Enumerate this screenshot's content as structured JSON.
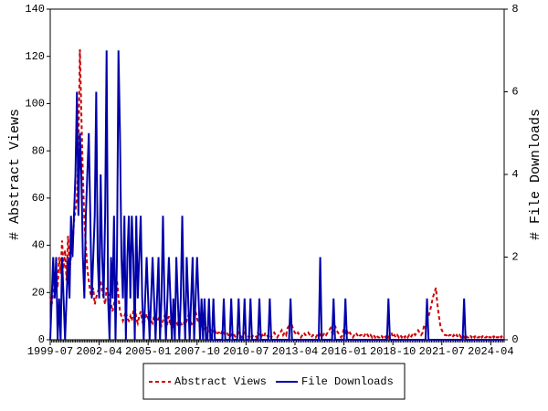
{
  "chart_data": {
    "type": "line",
    "ylabel": "# Abstract Views",
    "y2label": "# File Downloads",
    "x": [
      "1999-07",
      "1999-08",
      "1999-09",
      "1999-10",
      "1999-11",
      "1999-12",
      "2000-01",
      "2000-02",
      "2000-03",
      "2000-04",
      "2000-05",
      "2000-06",
      "2000-07",
      "2000-08",
      "2000-09",
      "2000-10",
      "2000-11",
      "2000-12",
      "2001-01",
      "2001-02",
      "2001-03",
      "2001-04",
      "2001-05",
      "2001-06",
      "2001-07",
      "2001-08",
      "2001-09",
      "2001-10",
      "2001-11",
      "2001-12",
      "2002-01",
      "2002-02",
      "2002-03",
      "2002-04",
      "2002-05",
      "2002-06",
      "2002-07",
      "2002-08",
      "2002-09",
      "2002-10",
      "2002-11",
      "2002-12",
      "2003-01",
      "2003-02",
      "2003-03",
      "2003-04",
      "2003-05",
      "2003-06",
      "2003-07",
      "2003-08",
      "2003-09",
      "2003-10",
      "2003-11",
      "2003-12",
      "2004-01",
      "2004-02",
      "2004-03",
      "2004-04",
      "2004-05",
      "2004-06",
      "2004-07",
      "2004-08",
      "2004-09",
      "2004-10",
      "2004-11",
      "2004-12",
      "2005-01",
      "2005-02",
      "2005-03",
      "2005-04",
      "2005-05",
      "2005-06",
      "2005-07",
      "2005-08",
      "2005-09",
      "2005-10",
      "2005-11",
      "2005-12",
      "2006-01",
      "2006-02",
      "2006-03",
      "2006-04",
      "2006-05",
      "2006-06",
      "2006-07",
      "2006-08",
      "2006-09",
      "2006-10",
      "2006-11",
      "2006-12",
      "2007-01",
      "2007-02",
      "2007-03",
      "2007-04",
      "2007-05",
      "2007-06",
      "2007-07",
      "2007-08",
      "2007-09",
      "2007-10",
      "2007-11",
      "2007-12",
      "2008-01",
      "2008-02",
      "2008-03",
      "2008-04",
      "2008-05",
      "2008-06",
      "2008-07",
      "2008-08",
      "2008-09",
      "2008-10",
      "2008-11",
      "2008-12",
      "2009-01",
      "2009-02",
      "2009-03",
      "2009-04",
      "2009-05",
      "2009-06",
      "2009-07",
      "2009-08",
      "2009-09",
      "2009-10",
      "2009-11",
      "2009-12",
      "2010-01",
      "2010-02",
      "2010-03",
      "2010-04",
      "2010-05",
      "2010-06",
      "2010-07",
      "2010-08",
      "2010-09",
      "2010-10",
      "2010-11",
      "2010-12",
      "2011-01",
      "2011-02",
      "2011-03",
      "2011-04",
      "2011-05",
      "2011-06",
      "2011-07",
      "2011-08",
      "2011-09",
      "2011-10",
      "2011-11",
      "2011-12",
      "2012-01",
      "2012-02",
      "2012-03",
      "2012-04",
      "2012-05",
      "2012-06",
      "2012-07",
      "2012-08",
      "2012-09",
      "2012-10",
      "2012-11",
      "2012-12",
      "2013-01",
      "2013-02",
      "2013-03",
      "2013-04",
      "2013-05",
      "2013-06",
      "2013-07",
      "2013-08",
      "2013-09",
      "2013-10",
      "2013-11",
      "2013-12",
      "2014-01",
      "2014-02",
      "2014-03",
      "2014-04",
      "2014-05",
      "2014-06",
      "2014-07",
      "2014-08",
      "2014-09",
      "2014-10",
      "2014-11",
      "2014-12",
      "2015-01",
      "2015-02",
      "2015-03",
      "2015-04",
      "2015-05",
      "2015-06",
      "2015-07",
      "2015-08",
      "2015-09",
      "2015-10",
      "2015-11",
      "2015-12",
      "2016-01",
      "2016-02",
      "2016-03",
      "2016-04",
      "2016-05",
      "2016-06",
      "2016-07",
      "2016-08",
      "2016-09",
      "2016-10",
      "2016-11",
      "2016-12",
      "2017-01",
      "2017-02",
      "2017-03",
      "2017-04",
      "2017-05",
      "2017-06",
      "2017-07",
      "2017-08",
      "2017-09",
      "2017-10",
      "2017-11",
      "2017-12",
      "2018-01",
      "2018-02",
      "2018-03",
      "2018-04",
      "2018-05",
      "2018-06",
      "2018-07",
      "2018-08",
      "2018-09",
      "2018-10",
      "2018-11",
      "2018-12",
      "2019-01",
      "2019-02",
      "2019-03",
      "2019-04",
      "2019-05",
      "2019-06",
      "2019-07",
      "2019-08",
      "2019-09",
      "2019-10",
      "2019-11",
      "2019-12",
      "2020-01",
      "2020-02",
      "2020-03",
      "2020-04",
      "2020-05",
      "2020-06",
      "2020-07",
      "2020-08",
      "2020-09",
      "2020-10",
      "2020-11",
      "2020-12",
      "2021-01",
      "2021-02",
      "2021-03",
      "2021-04",
      "2021-05",
      "2021-06",
      "2021-07",
      "2021-08",
      "2021-09",
      "2021-10",
      "2021-11",
      "2021-12",
      "2022-01",
      "2022-02",
      "2022-03",
      "2022-04",
      "2022-05",
      "2022-06",
      "2022-07",
      "2022-08",
      "2022-09",
      "2022-10",
      "2022-11",
      "2022-12",
      "2023-01",
      "2023-02",
      "2023-03",
      "2023-04",
      "2023-05",
      "2023-06",
      "2023-07",
      "2023-08",
      "2023-09",
      "2023-10",
      "2023-11",
      "2023-12",
      "2024-01",
      "2024-02",
      "2024-03",
      "2024-04",
      "2024-05",
      "2024-06",
      "2024-07",
      "2024-08",
      "2024-09",
      "2024-10",
      "2024-11",
      "2024-12",
      "2025-01"
    ],
    "xticks": [
      "1999-07",
      "2002-04",
      "2005-01",
      "2007-10",
      "2010-07",
      "2013-04",
      "2016-01",
      "2018-10",
      "2021-07",
      "2024-04"
    ],
    "ylim": [
      0,
      140
    ],
    "yticks": [
      0,
      20,
      40,
      60,
      80,
      100,
      120,
      140
    ],
    "y2lim": [
      0,
      8
    ],
    "y2ticks": [
      0,
      2,
      4,
      6,
      8
    ],
    "series": [
      {
        "name": "Abstract Views",
        "color": "#cc0000",
        "dashed": true,
        "values": [
          18,
          15,
          20,
          25,
          30,
          22,
          35,
          28,
          42,
          30,
          38,
          25,
          44,
          30,
          35,
          40,
          50,
          55,
          60,
          80,
          123,
          95,
          70,
          50,
          40,
          30,
          25,
          20,
          18,
          22,
          15,
          18,
          20,
          22,
          25,
          20,
          18,
          15,
          22,
          20,
          18,
          15,
          12,
          15,
          20,
          25,
          18,
          12,
          10,
          8,
          10,
          12,
          9,
          8,
          10,
          8,
          12,
          15,
          9,
          7,
          10,
          12,
          8,
          6,
          9,
          11,
          9,
          12,
          8,
          7,
          10,
          6,
          8,
          9,
          7,
          6,
          8,
          10,
          8,
          7,
          10,
          6,
          9,
          5,
          7,
          8,
          6,
          10,
          7,
          6,
          7,
          6,
          8,
          10,
          9,
          7,
          6,
          8,
          12,
          9,
          7,
          8,
          6,
          5,
          4,
          6,
          5,
          3,
          4,
          5,
          3,
          4,
          2,
          3,
          3,
          2,
          4,
          3,
          2,
          3,
          2,
          1,
          2,
          3,
          2,
          1,
          2,
          3,
          2,
          1,
          2,
          3,
          2,
          2,
          1,
          2,
          1,
          2,
          2,
          1,
          3,
          2,
          1,
          2,
          1,
          3,
          2,
          1,
          2,
          1,
          2,
          3,
          2,
          1,
          2,
          3,
          4,
          2,
          3,
          2,
          5,
          6,
          8,
          6,
          4,
          3,
          2,
          3,
          2,
          1,
          2,
          3,
          2,
          2,
          3,
          2,
          1,
          2,
          2,
          1,
          2,
          3,
          2,
          1,
          2,
          3,
          2,
          3,
          4,
          5,
          3,
          2,
          6,
          4,
          3,
          2,
          1,
          2,
          5,
          3,
          4,
          2,
          3,
          2,
          1,
          2,
          3,
          2,
          1,
          2,
          2,
          1,
          2,
          3,
          2,
          1,
          2,
          1,
          2,
          1,
          2,
          1,
          1,
          2,
          1,
          2,
          1,
          2,
          1,
          2,
          3,
          1,
          2,
          1,
          2,
          1,
          2,
          1,
          2,
          1,
          2,
          1,
          2,
          1,
          2,
          3,
          2,
          3,
          4,
          3,
          2,
          3,
          6,
          5,
          8,
          10,
          12,
          15,
          18,
          20,
          22,
          15,
          10,
          6,
          4,
          3,
          2,
          2,
          1,
          2,
          2,
          1,
          2,
          1,
          2,
          1,
          2,
          1,
          2,
          1,
          2,
          1,
          1,
          2,
          1,
          2,
          1,
          2,
          1,
          1,
          2,
          1,
          2,
          1,
          1,
          2,
          1,
          1,
          2,
          1,
          2,
          1,
          1,
          2,
          1,
          2,
          1
        ]
      },
      {
        "name": "File Downloads",
        "color": "#0000aa",
        "axis": "y2",
        "values": [
          0,
          1,
          2,
          1,
          2,
          0,
          1,
          0,
          2,
          1,
          0,
          1,
          2,
          1,
          3,
          2,
          3,
          4,
          6,
          3,
          5,
          4,
          2,
          1,
          3,
          4,
          5,
          3,
          1,
          2,
          3,
          6,
          2,
          1,
          4,
          2,
          1,
          3,
          7,
          1,
          0,
          2,
          1,
          3,
          0,
          2,
          7,
          5,
          2,
          1,
          3,
          0,
          2,
          3,
          1,
          3,
          2,
          0,
          3,
          1,
          2,
          3,
          1,
          0,
          1,
          2,
          1,
          0,
          1,
          2,
          1,
          0,
          1,
          2,
          0,
          1,
          3,
          1,
          0,
          1,
          2,
          1,
          0,
          1,
          0,
          2,
          1,
          0,
          1,
          3,
          1,
          0,
          2,
          1,
          0,
          1,
          2,
          0,
          1,
          2,
          1,
          0,
          1,
          0,
          1,
          0,
          0,
          1,
          0,
          0,
          1,
          0,
          0,
          0,
          0,
          0,
          0,
          1,
          0,
          0,
          0,
          0,
          1,
          0,
          0,
          0,
          0,
          1,
          0,
          0,
          0,
          1,
          0,
          0,
          0,
          1,
          0,
          0,
          0,
          0,
          0,
          1,
          0,
          0,
          0,
          0,
          0,
          0,
          1,
          0,
          0,
          0,
          0,
          0,
          0,
          0,
          0,
          0,
          0,
          0,
          0,
          0,
          1,
          0,
          0,
          0,
          0,
          0,
          0,
          0,
          0,
          0,
          0,
          0,
          0,
          0,
          0,
          0,
          0,
          0,
          0,
          0,
          2,
          0,
          0,
          0,
          0,
          0,
          0,
          0,
          0,
          1,
          0,
          0,
          0,
          0,
          0,
          0,
          0,
          1,
          0,
          0,
          0,
          0,
          0,
          0,
          0,
          0,
          0,
          0,
          0,
          0,
          0,
          0,
          0,
          0,
          0,
          0,
          0,
          0,
          0,
          0,
          0,
          0,
          0,
          0,
          0,
          0,
          1,
          0,
          0,
          0,
          0,
          0,
          0,
          0,
          0,
          0,
          0,
          0,
          0,
          0,
          0,
          0,
          0,
          0,
          0,
          0,
          0,
          0,
          0,
          0,
          0,
          0,
          1,
          0,
          0,
          0,
          0,
          0,
          0,
          0,
          0,
          0,
          0,
          0,
          0,
          0,
          0,
          0,
          0,
          0,
          0,
          0,
          0,
          0,
          0,
          0,
          0,
          1,
          0,
          0,
          0,
          0,
          0,
          0,
          0,
          0,
          0,
          0,
          0,
          0,
          0,
          0,
          0,
          0,
          0,
          0,
          0,
          0,
          0,
          0,
          0,
          0,
          0,
          0,
          0
        ]
      }
    ]
  }
}
